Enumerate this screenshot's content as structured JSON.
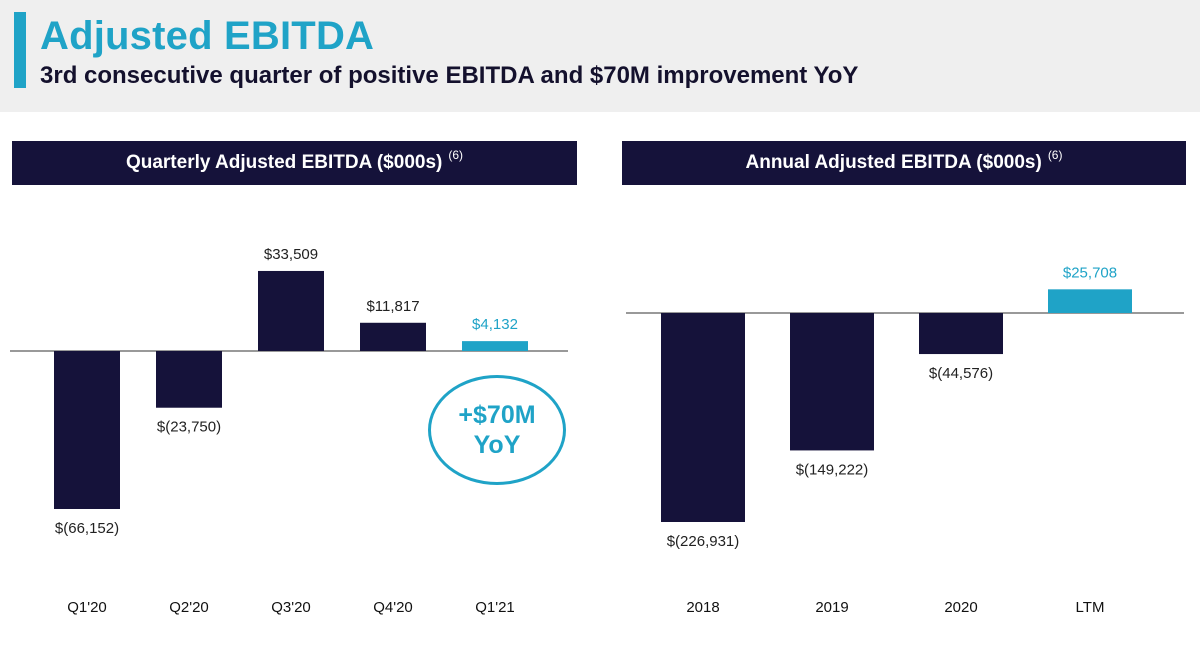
{
  "header": {
    "title": "Adjusted EBITDA",
    "subtitle": "3rd consecutive quarter of positive EBITDA and $70M improvement YoY"
  },
  "quarterly": {
    "label": "Quarterly Adjusted EBITDA ($000s)",
    "footnote": "(6)"
  },
  "annual": {
    "label": "Annual Adjusted EBITDA ($000s)",
    "footnote": "(6)"
  },
  "callout": {
    "line1": "+$70M",
    "line2": "YoY"
  },
  "colors": {
    "dark": "#15123a",
    "accent": "#1fa3c7",
    "text": "#222222"
  },
  "chart_data": [
    {
      "type": "bar",
      "title": "Quarterly Adjusted EBITDA ($000s)",
      "categories": [
        "Q1'20",
        "Q2'20",
        "Q3'20",
        "Q4'20",
        "Q1'21"
      ],
      "values": [
        -66152,
        -23750,
        33509,
        11817,
        4132
      ],
      "labels": [
        "$(66,152)",
        "$(23,750)",
        "$33,509",
        "$11,817",
        "$4,132"
      ],
      "highlight": [
        false,
        false,
        false,
        false,
        true
      ],
      "ylim": [
        -70000,
        40000
      ],
      "xlabel": "",
      "ylabel": ""
    },
    {
      "type": "bar",
      "title": "Annual Adjusted EBITDA ($000s)",
      "categories": [
        "2018",
        "2019",
        "2020",
        "LTM"
      ],
      "values": [
        -226931,
        -149222,
        -44576,
        25708
      ],
      "labels": [
        "$(226,931)",
        "$(149,222)",
        "$(44,576)",
        "$25,708"
      ],
      "highlight": [
        false,
        false,
        false,
        true
      ],
      "ylim": [
        -230000,
        30000
      ],
      "xlabel": "",
      "ylabel": ""
    }
  ]
}
